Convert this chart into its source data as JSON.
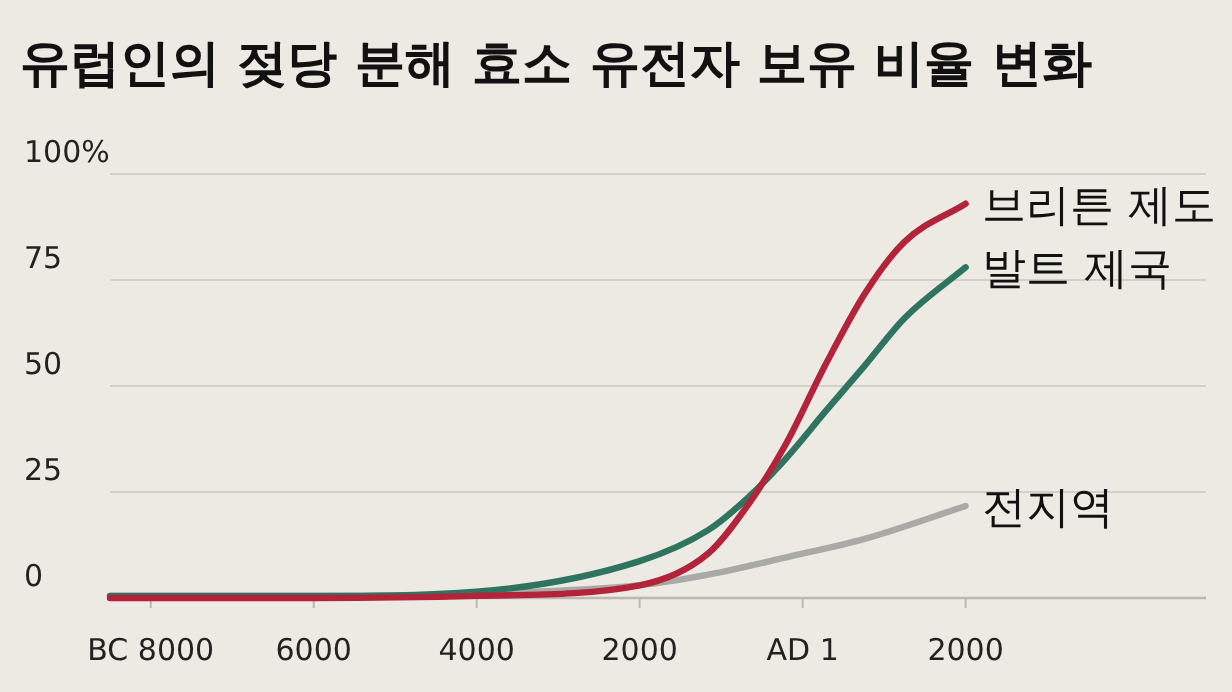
{
  "chart_data": {
    "type": "line",
    "title": "유럽인의 젖당 분해 효소 유전자 보유 비율 변화",
    "xlim": [
      -8500,
      4950
    ],
    "ylim": [
      0,
      100
    ],
    "xticks": [
      {
        "value": -8000,
        "label": "BC 8000"
      },
      {
        "value": -6000,
        "label": "6000"
      },
      {
        "value": -4000,
        "label": "4000"
      },
      {
        "value": -2000,
        "label": "2000"
      },
      {
        "value": 0,
        "label": "AD 1"
      },
      {
        "value": 2000,
        "label": "2000"
      }
    ],
    "yticks": [
      0,
      25,
      50,
      75,
      {
        "value": 100,
        "label": "100%"
      }
    ],
    "grid": "y",
    "legend": false,
    "marker": "none",
    "line_style": "solid",
    "series": [
      {
        "name": "브리튼 제도",
        "color": "#b3233a",
        "x": [
          -8500,
          -6000,
          -4000,
          -2000,
          -1160,
          -680,
          -200,
          280,
          770,
          1250,
          2000
        ],
        "values": [
          0,
          0,
          0.5,
          3,
          10.5,
          21.7,
          36.5,
          55,
          72,
          84,
          93
        ]
      },
      {
        "name": "발트 제국",
        "color": "#2f7460",
        "x": [
          -8500,
          -6000,
          -4000,
          -2000,
          -1160,
          -680,
          -200,
          280,
          770,
          1250,
          2000
        ],
        "values": [
          0.5,
          0.5,
          1.5,
          8.7,
          16,
          23.5,
          33,
          44,
          55,
          66,
          78
        ]
      },
      {
        "name": "전지역",
        "color": "#a9a9a7",
        "x": [
          -8500,
          -6000,
          -4000,
          -2000,
          -1160,
          -200,
          770,
          2000
        ],
        "values": [
          0.5,
          0.5,
          1,
          3,
          5.5,
          9.6,
          14,
          21.7
        ]
      }
    ]
  }
}
